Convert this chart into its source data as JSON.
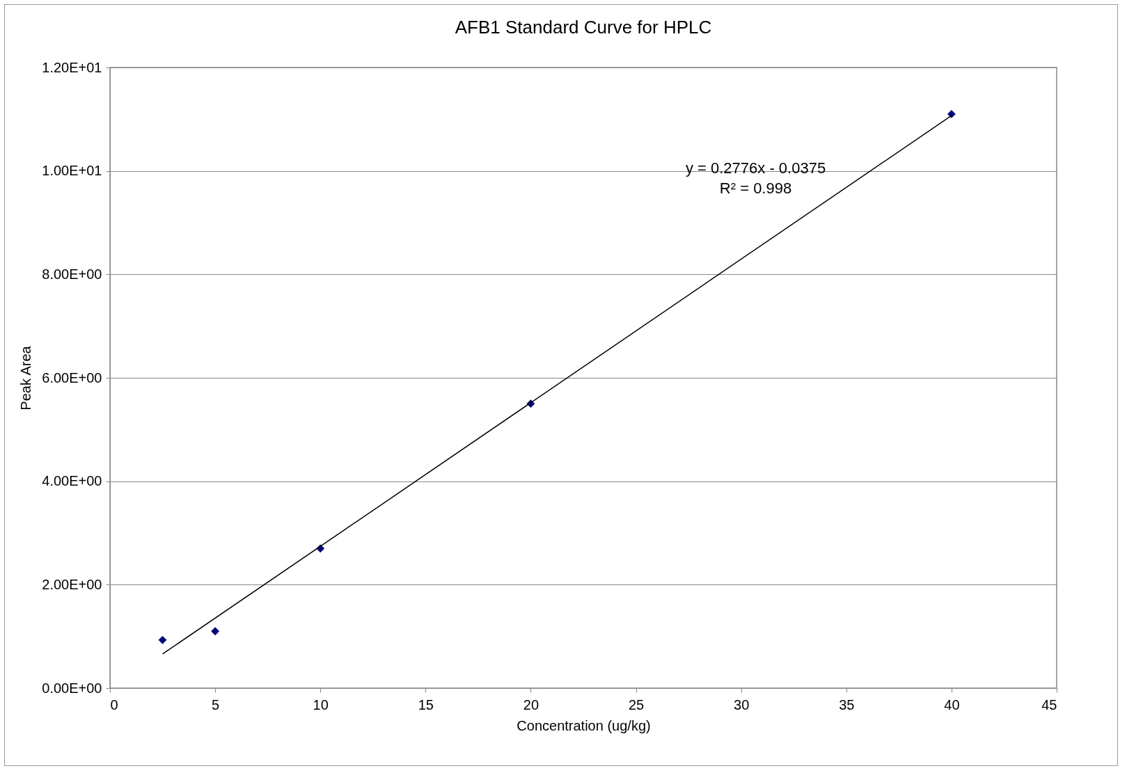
{
  "chart_data": {
    "type": "scatter",
    "title": "AFB1 Standard Curve for HPLC",
    "xlabel": "Concentration (ug/kg)",
    "ylabel": "Peak Area",
    "series": [
      {
        "color": "#000080",
        "marker": "diamond",
        "x": [
          2.5,
          5,
          10,
          20,
          40
        ],
        "values": [
          0.93,
          1.1,
          2.7,
          5.5,
          11.1
        ]
      },
      {
        "type": "line",
        "color": "#000000",
        "marker": "none",
        "line_style": "solid",
        "x": [
          2.5,
          40
        ],
        "values": [
          0.66,
          11.07
        ]
      }
    ],
    "xlim": [
      0,
      45
    ],
    "xticks": [
      0,
      5,
      10,
      15,
      20,
      25,
      30,
      35,
      40,
      45
    ],
    "ylim": [
      0,
      12
    ],
    "yticks": [
      {
        "value": 0,
        "label": "0.00E+00"
      },
      {
        "value": 2,
        "label": "2.00E+00"
      },
      {
        "value": 4,
        "label": "4.00E+00"
      },
      {
        "value": 6,
        "label": "6.00E+00"
      },
      {
        "value": 8,
        "label": "8.00E+00"
      },
      {
        "value": 10,
        "label": "1.00E+01"
      },
      {
        "value": 12,
        "label": "1.20E+01"
      }
    ],
    "grid": "y",
    "annotations": [
      "y = 0.2776x - 0.0375",
      "R² = 0.998"
    ]
  }
}
